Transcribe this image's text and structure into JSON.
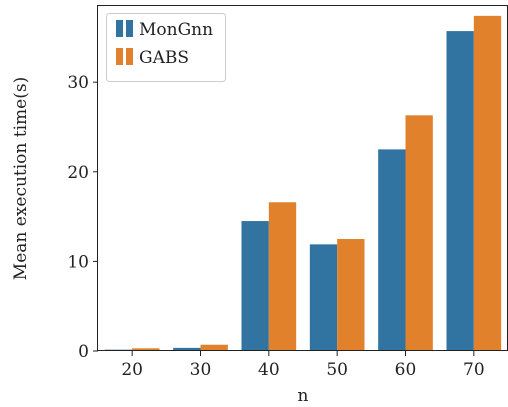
{
  "chart_data": {
    "type": "bar",
    "title": "",
    "xlabel": "n",
    "ylabel": "Mean execution time(s)",
    "categories": [
      "20",
      "30",
      "40",
      "50",
      "60",
      "70"
    ],
    "series": [
      {
        "name": "MonGnn",
        "color": "#3274a1",
        "values": [
          0.15,
          0.35,
          14.5,
          11.9,
          22.5,
          35.7
        ]
      },
      {
        "name": "GABS",
        "color": "#e1812c",
        "values": [
          0.3,
          0.7,
          16.6,
          12.5,
          26.3,
          37.4
        ]
      }
    ],
    "ylim": [
      0,
      38.5
    ],
    "yticks": [
      0,
      10,
      20,
      30
    ],
    "legend": "top-left",
    "grid": false
  }
}
